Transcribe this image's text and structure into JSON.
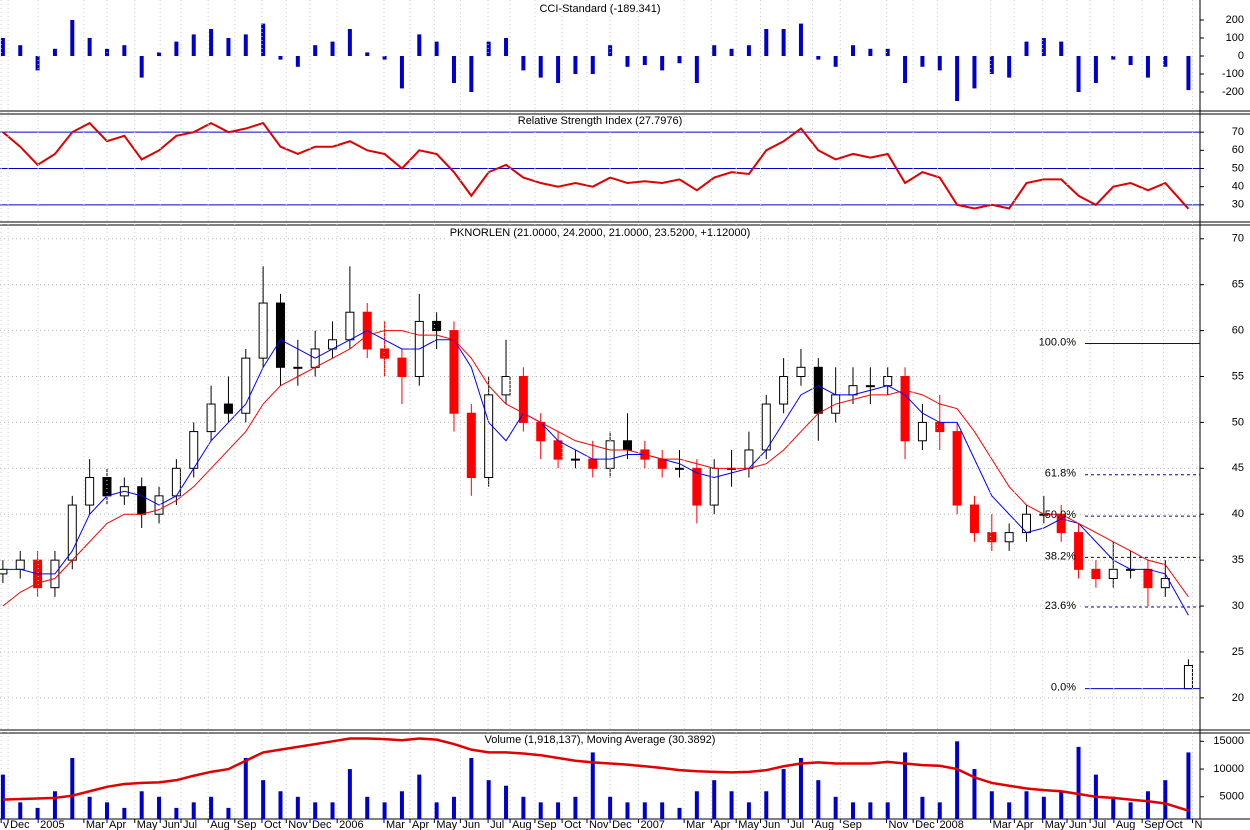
{
  "chart_data": [
    {
      "type": "bar",
      "title": "CCI-Standard (-189.341)",
      "x": [
        0,
        3,
        6,
        9,
        12,
        15,
        18,
        21,
        24,
        27,
        30,
        33,
        36,
        39,
        42,
        45,
        48,
        51,
        54,
        57,
        60,
        63,
        66,
        69,
        72,
        75,
        78,
        81,
        84,
        87,
        90,
        93,
        96,
        99,
        102,
        105,
        108,
        111,
        114,
        117,
        120,
        123,
        126,
        129,
        132,
        135,
        138,
        141,
        144,
        147,
        150,
        153,
        156,
        159,
        162,
        165,
        168,
        171,
        174,
        177,
        180,
        183,
        186,
        189,
        192,
        195,
        198,
        201,
        205
      ],
      "values": [
        100,
        60,
        -80,
        40,
        200,
        100,
        40,
        60,
        -120,
        20,
        80,
        120,
        150,
        100,
        120,
        180,
        -20,
        -60,
        60,
        80,
        150,
        20,
        -20,
        -180,
        120,
        80,
        -150,
        -200,
        80,
        100,
        -80,
        -120,
        -150,
        -100,
        -100,
        60,
        -60,
        -50,
        -80,
        -40,
        -150,
        60,
        40,
        60,
        150,
        150,
        180,
        -20,
        -60,
        60,
        40,
        40,
        -150,
        -60,
        -80,
        -250,
        -180,
        -100,
        -120,
        80,
        100,
        80,
        -200,
        -150,
        -20,
        -50,
        -120,
        -60,
        -189.341
      ],
      "color": "#0000cc",
      "xlim": [
        -0.5,
        207
      ],
      "ylim": [
        -300,
        300
      ],
      "yticks": [
        200,
        100,
        0,
        -100,
        -200
      ]
    },
    {
      "type": "line",
      "title": "Relative Strength Index (27.7976)",
      "x": [
        0,
        3,
        6,
        9,
        12,
        15,
        18,
        21,
        24,
        27,
        30,
        33,
        36,
        39,
        42,
        45,
        48,
        51,
        54,
        57,
        60,
        63,
        66,
        69,
        72,
        75,
        78,
        81,
        84,
        87,
        90,
        93,
        96,
        99,
        102,
        105,
        108,
        111,
        114,
        117,
        120,
        123,
        126,
        129,
        132,
        135,
        138,
        141,
        144,
        147,
        150,
        153,
        156,
        159,
        162,
        165,
        168,
        171,
        174,
        177,
        180,
        183,
        186,
        189,
        192,
        195,
        198,
        201,
        205
      ],
      "values": [
        70,
        62,
        52,
        58,
        70,
        75,
        65,
        68,
        55,
        60,
        68,
        70,
        75,
        70,
        72,
        75,
        62,
        58,
        62,
        62,
        65,
        60,
        58,
        50,
        60,
        58,
        48,
        35,
        48,
        52,
        45,
        42,
        40,
        42,
        40,
        45,
        42,
        43,
        42,
        44,
        38,
        45,
        48,
        47,
        60,
        65,
        72,
        60,
        55,
        58,
        56,
        58,
        42,
        48,
        45,
        30,
        28,
        30,
        28,
        42,
        44,
        44,
        35,
        30,
        40,
        42,
        38,
        42,
        27.8
      ],
      "color": "#e00000",
      "levels": [
        70,
        50,
        30
      ],
      "level_color": "#0000cc",
      "xlim": [
        -0.5,
        207
      ],
      "ylim": [
        20,
        80
      ],
      "yticks": [
        70,
        60,
        50,
        40,
        30
      ]
    },
    {
      "type": "candlestick",
      "title": "PKNORLEN (21.0000, 24.2000, 21.0000, 23.5200, +1.12000)",
      "x": [
        0,
        3,
        6,
        9,
        12,
        15,
        18,
        21,
        24,
        27,
        30,
        33,
        36,
        39,
        42,
        45,
        48,
        51,
        54,
        57,
        60,
        63,
        66,
        69,
        72,
        75,
        78,
        81,
        84,
        87,
        90,
        93,
        96,
        99,
        102,
        105,
        108,
        111,
        114,
        117,
        120,
        123,
        126,
        129,
        132,
        135,
        138,
        141,
        144,
        147,
        150,
        153,
        156,
        159,
        162,
        165,
        168,
        171,
        174,
        177,
        180,
        183,
        186,
        189,
        192,
        195,
        198,
        201,
        205
      ],
      "open": [
        33.5,
        34,
        35,
        32,
        35,
        41,
        44,
        42,
        43,
        40,
        42,
        45,
        49,
        52,
        51,
        57,
        63,
        56,
        56,
        58,
        59,
        62,
        58,
        57,
        55,
        61,
        60,
        51,
        44,
        53,
        55,
        50,
        48,
        46,
        46,
        45,
        48,
        47,
        46,
        45,
        45,
        41,
        45,
        45,
        47,
        52,
        55,
        56,
        51,
        53,
        54,
        54,
        55,
        48,
        50,
        49,
        41,
        38,
        37,
        38,
        40,
        40,
        38,
        34,
        33,
        34,
        34,
        32,
        21
      ],
      "high": [
        35,
        36,
        36,
        36,
        42,
        46,
        45,
        44,
        44,
        43,
        46,
        50,
        54,
        55,
        58,
        67,
        64,
        59,
        60,
        61,
        67,
        63,
        61,
        58,
        64,
        62,
        61,
        52,
        55,
        59,
        56,
        51,
        49,
        47,
        48,
        49,
        51,
        48,
        47,
        47,
        46,
        46,
        47,
        49,
        53,
        57,
        58,
        57,
        56,
        56,
        56,
        56,
        56,
        52,
        53,
        50,
        42,
        40,
        39,
        41,
        42,
        41,
        39,
        35,
        37,
        36,
        35,
        35,
        24.2
      ],
      "low": [
        32.5,
        33,
        31,
        31,
        34,
        40,
        41,
        41,
        38.5,
        39,
        41,
        44,
        48,
        50,
        50,
        56,
        54,
        54,
        55,
        57,
        58,
        57,
        55,
        52,
        54,
        58,
        49,
        42,
        43,
        52,
        49,
        46,
        45,
        45,
        44,
        44,
        46,
        45,
        44,
        44,
        39,
        40,
        43,
        44,
        46,
        51,
        54,
        48,
        50,
        52,
        52,
        53,
        46,
        47,
        47,
        40,
        37,
        36,
        36,
        37,
        39,
        37,
        33,
        32,
        32,
        33,
        30,
        31,
        21
      ],
      "close": [
        34,
        35,
        32,
        35,
        41,
        44,
        42,
        43,
        40,
        42,
        45,
        49,
        52,
        51,
        57,
        63,
        56,
        56,
        58,
        59,
        62,
        58,
        57,
        55,
        61,
        60,
        51,
        44,
        53,
        55,
        50,
        48,
        46,
        46,
        45,
        48,
        47,
        46,
        45,
        45,
        41,
        45,
        45,
        47,
        52,
        55,
        56,
        51,
        53,
        54,
        54,
        55,
        48,
        50,
        49,
        41,
        38,
        37,
        38,
        40,
        40,
        38,
        34,
        33,
        34,
        34,
        32,
        33,
        23.52
      ],
      "up_color": "#ffffff",
      "down_color": "#000000",
      "weak_color": "#ff0000",
      "averages": [
        {
          "color": "#0000ff",
          "values": [
            34,
            34,
            33.5,
            33.5,
            36,
            40,
            42,
            42.5,
            42,
            41,
            42,
            45,
            48,
            50,
            52,
            56,
            59,
            58,
            57,
            58,
            59,
            60,
            59,
            58,
            58,
            59,
            59,
            56,
            50,
            48,
            51,
            50,
            48,
            47,
            46,
            46,
            46.5,
            46.5,
            46,
            45.5,
            44.5,
            44,
            44.5,
            45,
            47,
            50,
            53,
            54,
            53,
            53,
            53.5,
            54,
            53,
            51,
            50,
            50,
            46,
            42,
            40,
            38,
            38.5,
            39.5,
            39,
            37,
            35,
            34,
            34,
            33.5,
            29
          ]
        },
        {
          "color": "#ff0000",
          "values": [
            30,
            31.5,
            32.5,
            33,
            35,
            37,
            39,
            40,
            40,
            40.5,
            41.5,
            43,
            45,
            47,
            49,
            52,
            54,
            55,
            56,
            57,
            58,
            59.5,
            60,
            60,
            59.5,
            59.5,
            59,
            57,
            54,
            52,
            51,
            50,
            49,
            48,
            47.5,
            47,
            47,
            46.5,
            46,
            46,
            45.5,
            45,
            45,
            45,
            45.5,
            47,
            49,
            51,
            52,
            52.5,
            53,
            53,
            53.5,
            53,
            52,
            51.5,
            49,
            46,
            43,
            41,
            40,
            40,
            39,
            38,
            37,
            36,
            35,
            34.5,
            31
          ]
        }
      ],
      "fib_levels": [
        {
          "value": 58.6,
          "label": "100.0%"
        },
        {
          "value": 44.3,
          "label": "61.8%"
        },
        {
          "value": 39.8,
          "label": "50.0%"
        },
        {
          "value": 35.3,
          "label": "38.2%"
        },
        {
          "value": 29.9,
          "label": "23.6%"
        },
        {
          "value": 21.0,
          "label": "0.0%"
        }
      ],
      "fib_color": "#0000cc",
      "grid": true,
      "xlim": [
        -0.5,
        207
      ],
      "ylim": [
        16.5,
        71.5
      ],
      "yticks": [
        70,
        65,
        60,
        55,
        50,
        45,
        40,
        35,
        30,
        25,
        20
      ]
    },
    {
      "type": "bar",
      "title": "Volume (1,918,137), Moving Average (30.3892)",
      "x": [
        0,
        3,
        6,
        9,
        12,
        15,
        18,
        21,
        24,
        27,
        30,
        33,
        36,
        39,
        42,
        45,
        48,
        51,
        54,
        57,
        60,
        63,
        66,
        69,
        72,
        75,
        78,
        81,
        84,
        87,
        90,
        93,
        96,
        99,
        102,
        105,
        108,
        111,
        114,
        117,
        120,
        123,
        126,
        129,
        132,
        135,
        138,
        141,
        144,
        147,
        150,
        153,
        156,
        159,
        162,
        165,
        168,
        171,
        174,
        177,
        180,
        183,
        186,
        189,
        192,
        195,
        198,
        201,
        205
      ],
      "values": [
        9000,
        4000,
        3000,
        6000,
        12000,
        5000,
        4000,
        3000,
        6000,
        5000,
        3000,
        4000,
        5000,
        3000,
        12000,
        8000,
        6000,
        5000,
        4000,
        4000,
        10000,
        5000,
        4000,
        6000,
        9000,
        4000,
        5000,
        12000,
        8000,
        7000,
        5000,
        4000,
        4000,
        5000,
        13000,
        5000,
        4000,
        4000,
        4000,
        3000,
        6000,
        8000,
        6000,
        4000,
        6000,
        10000,
        12000,
        8000,
        5000,
        4000,
        4000,
        4000,
        13000,
        5000,
        4000,
        15000,
        10000,
        6000,
        4000,
        6000,
        5000,
        6000,
        14000,
        9000,
        5000,
        4000,
        6000,
        8000,
        13000
      ],
      "color": "#0000cc",
      "averages": [
        {
          "color": "#e00000",
          "values": [
            4500,
            4600,
            4700,
            4800,
            5200,
            6000,
            6800,
            7300,
            7500,
            7600,
            8000,
            8800,
            9500,
            10000,
            11500,
            13000,
            13500,
            14000,
            14500,
            15000,
            15500,
            15500,
            15400,
            15200,
            15500,
            15300,
            14500,
            13500,
            13000,
            13000,
            12800,
            12500,
            12000,
            11500,
            11200,
            11000,
            10800,
            10500,
            10200,
            9800,
            9600,
            9500,
            9400,
            9500,
            9800,
            10500,
            11000,
            11200,
            11000,
            11000,
            11000,
            11300,
            11000,
            10700,
            10600,
            10000,
            8500,
            7500,
            7000,
            6500,
            6200,
            6000,
            5500,
            5000,
            4800,
            4500,
            4200,
            3800,
            2500
          ]
        }
      ],
      "xlim": [
        -0.5,
        207
      ],
      "ylim": [
        1000,
        16500
      ],
      "yticks": [
        15000,
        10000,
        5000
      ],
      "xticks": [
        {
          "value": -0.3,
          "label": "v"
        },
        {
          "value": 0.9,
          "label": "Dec"
        },
        {
          "value": 6.1,
          "label": "2005"
        },
        {
          "value": 14,
          "label": "Mar"
        },
        {
          "value": 18,
          "label": "Apr"
        },
        {
          "value": 22.8,
          "label": "May"
        },
        {
          "value": 27.2,
          "label": "Jun"
        },
        {
          "value": 30.8,
          "label": "Jul"
        },
        {
          "value": 35.5,
          "label": "Aug"
        },
        {
          "value": 40.1,
          "label": "Sep"
        },
        {
          "value": 44.8,
          "label": "Oct"
        },
        {
          "value": 49,
          "label": "Nov"
        },
        {
          "value": 53.1,
          "label": "Dec"
        },
        {
          "value": 57.8,
          "label": "2006"
        },
        {
          "value": 65.9,
          "label": "Mar"
        },
        {
          "value": 70.4,
          "label": "Apr"
        },
        {
          "value": 74.6,
          "label": "May"
        },
        {
          "value": 79.1,
          "label": "Jun"
        },
        {
          "value": 83.9,
          "label": "Jul"
        },
        {
          "value": 87.7,
          "label": "Aug"
        },
        {
          "value": 92,
          "label": "Sep"
        },
        {
          "value": 96.7,
          "label": "Oct"
        },
        {
          "value": 101,
          "label": "Nov"
        },
        {
          "value": 105,
          "label": "Dec"
        },
        {
          "value": 109.9,
          "label": "2007"
        },
        {
          "value": 117.8,
          "label": "Mar"
        },
        {
          "value": 122.5,
          "label": "Apr"
        },
        {
          "value": 126.8,
          "label": "May"
        },
        {
          "value": 131,
          "label": "Jun"
        },
        {
          "value": 135.8,
          "label": "Jul"
        },
        {
          "value": 140,
          "label": "Aug"
        },
        {
          "value": 144.8,
          "label": "Sep"
        },
        {
          "value": 152.8,
          "label": "Nov"
        },
        {
          "value": 157.4,
          "label": "Dec"
        },
        {
          "value": 161.6,
          "label": "2008"
        },
        {
          "value": 170.8,
          "label": "Mar"
        },
        {
          "value": 174.9,
          "label": "Apr"
        },
        {
          "value": 179.8,
          "label": "May"
        },
        {
          "value": 184,
          "label": "Jun"
        },
        {
          "value": 188,
          "label": "Jul"
        },
        {
          "value": 192.1,
          "label": "Aug"
        },
        {
          "value": 197,
          "label": "Sep"
        },
        {
          "value": 200.7,
          "label": "Oct"
        },
        {
          "value": 205.7,
          "label": "N"
        }
      ]
    }
  ]
}
